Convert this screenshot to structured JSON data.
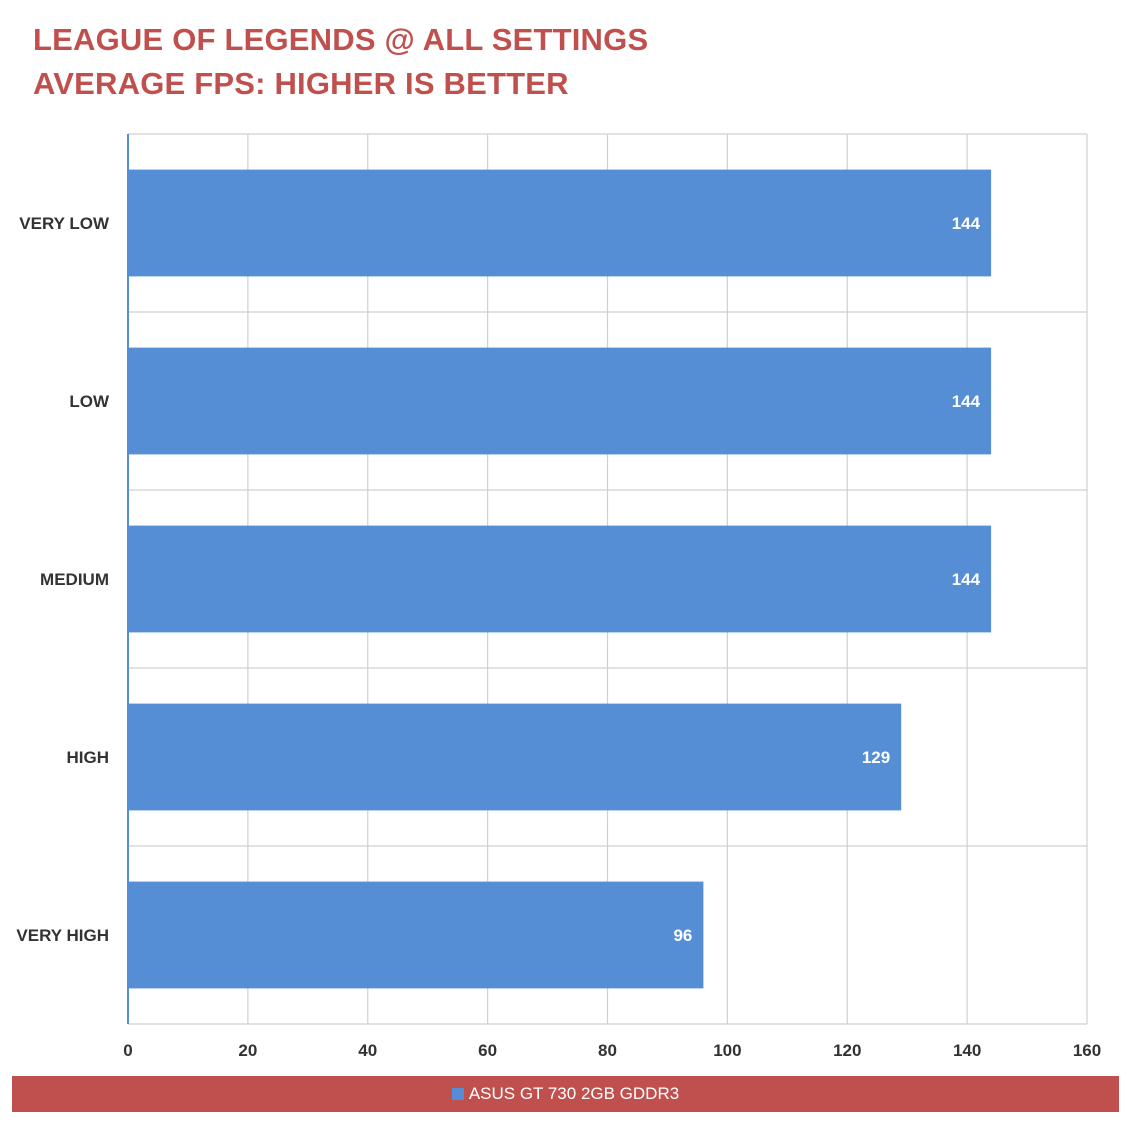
{
  "chart_data": {
    "type": "bar",
    "orientation": "horizontal",
    "title": "LEAGUE OF LEGENDS @ ALL SETTINGS",
    "subtitle": "AVERAGE FPS: HIGHER IS BETTER",
    "categories": [
      "VERY LOW",
      "LOW",
      "MEDIUM",
      "HIGH",
      "VERY HIGH"
    ],
    "series": [
      {
        "name": "ASUS GT 730 2GB GDDR3",
        "values": [
          144,
          144,
          144,
          129,
          96
        ]
      }
    ],
    "xlim": [
      0,
      160
    ],
    "xticks": [
      0,
      20,
      40,
      60,
      80,
      100,
      120,
      140,
      160
    ],
    "grid": true,
    "legend_position": "bottom",
    "colors": {
      "bar": "#558ed5",
      "title": "#c0504d",
      "legend_background": "#c0504d",
      "grid": "#d0d0d0"
    }
  }
}
